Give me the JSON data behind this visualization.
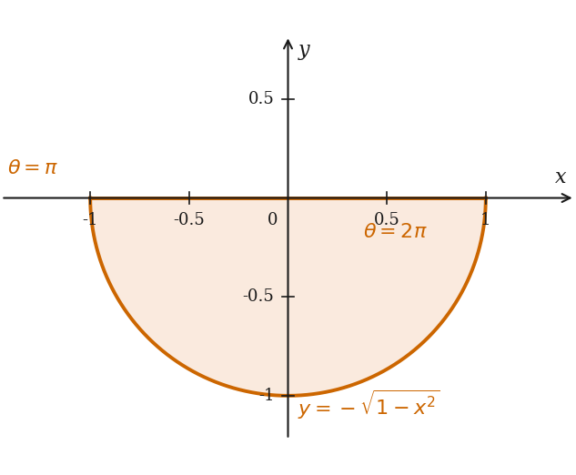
{
  "xlim": [
    -1.45,
    1.45
  ],
  "ylim": [
    -1.22,
    0.82
  ],
  "circle_color": "#CC6600",
  "fill_color": "#FAEADE",
  "line_width": 2.8,
  "label_x": "x",
  "label_y": "y",
  "axis_color": "#1a1a1a",
  "label_color": "#CC6600",
  "tick_fontsize": 13,
  "annotation_fontsize": 16,
  "xtick_positions": [
    -1,
    -0.5,
    0.5,
    1
  ],
  "xtick_labels": [
    "-1",
    "-0.5",
    "0.5",
    "1"
  ],
  "ytick_positions": [
    -1,
    -0.5,
    0.5
  ],
  "ytick_labels": [
    "-1",
    "-0.5",
    "0.5"
  ]
}
